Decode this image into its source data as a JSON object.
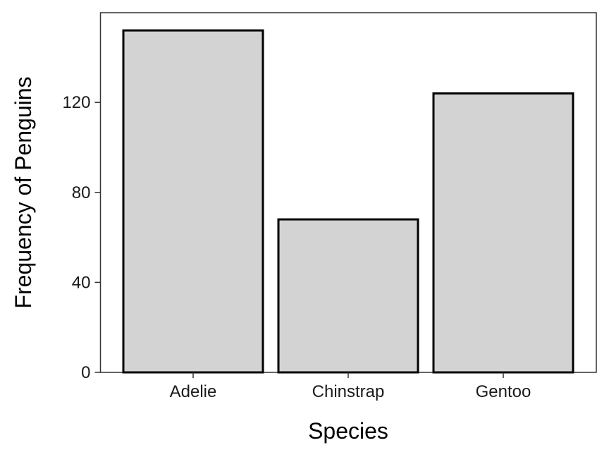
{
  "chart_data": {
    "type": "bar",
    "categories": [
      "Adelie",
      "Chinstrap",
      "Gentoo"
    ],
    "values": [
      152,
      68,
      124
    ],
    "xlabel": "Species",
    "ylabel": "Frequency of Penguins",
    "ylim": [
      0,
      160
    ],
    "yticks": [
      0,
      40,
      80,
      120
    ],
    "grid": false,
    "legend": "none",
    "colors": {
      "bar_fill": "#d3d3d3",
      "bar_stroke": "#000000",
      "panel_border": "#333333"
    }
  }
}
